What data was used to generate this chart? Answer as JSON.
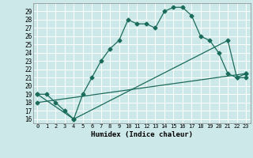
{
  "xlabel": "Humidex (Indice chaleur)",
  "bg_color": "#cde8e8",
  "grid_color": "#ffffff",
  "line_color": "#1a6b5a",
  "xlim": [
    -0.5,
    23.5
  ],
  "ylim": [
    15.5,
    30.0
  ],
  "xticks": [
    0,
    1,
    2,
    3,
    4,
    5,
    6,
    7,
    8,
    9,
    10,
    11,
    12,
    13,
    14,
    15,
    16,
    17,
    18,
    19,
    20,
    21,
    22,
    23
  ],
  "yticks": [
    16,
    17,
    18,
    19,
    20,
    21,
    22,
    23,
    24,
    25,
    26,
    27,
    28,
    29
  ],
  "line1_x": [
    0,
    1,
    2,
    3,
    4,
    5,
    6,
    7,
    8,
    9,
    10,
    11,
    12,
    13,
    14,
    15,
    16,
    17,
    18,
    19,
    20,
    21,
    22,
    23
  ],
  "line1_y": [
    19.0,
    19.0,
    18.0,
    17.0,
    16.0,
    19.0,
    21.0,
    23.0,
    24.5,
    25.5,
    28.0,
    27.5,
    27.5,
    27.0,
    29.0,
    29.5,
    29.5,
    28.5,
    26.0,
    25.5,
    24.0,
    21.5,
    21.0,
    21.0
  ],
  "line2_x": [
    0,
    4,
    21,
    22,
    23
  ],
  "line2_y": [
    19.0,
    16.0,
    25.5,
    21.0,
    21.5
  ],
  "line3_x": [
    0,
    23
  ],
  "line3_y": [
    18.0,
    21.5
  ]
}
